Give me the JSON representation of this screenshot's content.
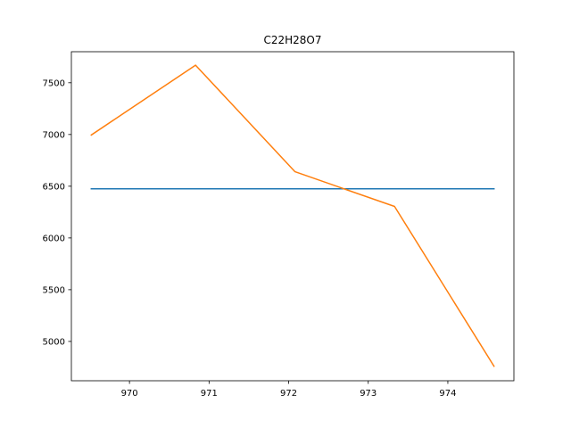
{
  "chart_data": {
    "type": "line",
    "title": "C22H28O7",
    "xlabel": "",
    "ylabel": "",
    "xlim": [
      969.27,
      974.83
    ],
    "ylim": [
      4620,
      7800
    ],
    "x_ticks": [
      970,
      971,
      972,
      973,
      974
    ],
    "x_tick_labels": [
      "970",
      "971",
      "972",
      "973",
      "974"
    ],
    "y_ticks": [
      5000,
      5500,
      6000,
      6500,
      7000,
      7500
    ],
    "y_tick_labels": [
      "5000",
      "5500",
      "6000",
      "6500",
      "7000",
      "7500"
    ],
    "grid": false,
    "legend": "none",
    "series": [
      {
        "color": "#1f77b4",
        "x": [
          969.52,
          974.58
        ],
        "y": [
          6475,
          6475
        ]
      },
      {
        "color": "#ff7f0e",
        "x": [
          969.52,
          970.83,
          972.08,
          973.33,
          974.58
        ],
        "y": [
          6995,
          7670,
          6640,
          6305,
          4760
        ]
      }
    ]
  }
}
